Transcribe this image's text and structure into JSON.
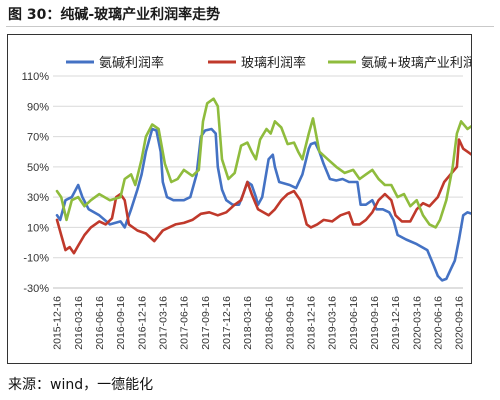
{
  "figure_title": "图 30：纯碱-玻璃产业利润率走势",
  "source_note": "来源：wind，一德能化",
  "chart_data": {
    "type": "line",
    "title": "",
    "xlabel": "",
    "ylabel": "",
    "ylim": [
      -30,
      110
    ],
    "y_ticks": [
      -30,
      -10,
      10,
      30,
      50,
      70,
      90,
      110
    ],
    "y_tick_labels": [
      "-30%",
      "-10%",
      "10%",
      "30%",
      "50%",
      "70%",
      "90%",
      "110%"
    ],
    "x_tick_labels": [
      "2015-12-16",
      "2016-03-16",
      "2016-06-16",
      "2016-09-16",
      "2016-12-16",
      "2017-03-16",
      "2017-06-16",
      "2017-09-16",
      "2017-12-16",
      "2018-03-16",
      "2018-06-16",
      "2018-09-16",
      "2018-12-16",
      "2019-03-16",
      "2019-06-16",
      "2019-09-16",
      "2019-12-16",
      "2020-03-16",
      "2020-06-16",
      "2020-09-16"
    ],
    "grid": true,
    "legend_position": "top",
    "series": [
      {
        "name": "氨碱利润率",
        "color": "#4472c4",
        "points": [
          [
            0,
            18
          ],
          [
            0.15,
            15
          ],
          [
            0.4,
            28
          ],
          [
            0.7,
            30
          ],
          [
            1.0,
            38
          ],
          [
            1.2,
            30
          ],
          [
            1.5,
            22
          ],
          [
            2.0,
            18
          ],
          [
            2.5,
            12
          ],
          [
            3.0,
            14
          ],
          [
            3.2,
            10
          ],
          [
            3.5,
            22
          ],
          [
            3.8,
            35
          ],
          [
            4.0,
            45
          ],
          [
            4.2,
            60
          ],
          [
            4.5,
            75
          ],
          [
            4.7,
            74
          ],
          [
            4.9,
            60
          ],
          [
            5.0,
            40
          ],
          [
            5.2,
            30
          ],
          [
            5.5,
            28
          ],
          [
            6.0,
            28
          ],
          [
            6.3,
            30
          ],
          [
            6.6,
            45
          ],
          [
            6.8,
            70
          ],
          [
            7.0,
            74
          ],
          [
            7.3,
            75
          ],
          [
            7.5,
            72
          ],
          [
            7.6,
            50
          ],
          [
            7.8,
            35
          ],
          [
            8.0,
            28
          ],
          [
            8.3,
            25
          ],
          [
            8.6,
            25
          ],
          [
            8.8,
            32
          ],
          [
            9.0,
            40
          ],
          [
            9.2,
            38
          ],
          [
            9.4,
            30
          ],
          [
            9.5,
            25
          ],
          [
            9.7,
            30
          ],
          [
            10.0,
            55
          ],
          [
            10.2,
            58
          ],
          [
            10.3,
            50
          ],
          [
            10.5,
            40
          ],
          [
            11.0,
            38
          ],
          [
            11.3,
            36
          ],
          [
            11.6,
            45
          ],
          [
            11.9,
            62
          ],
          [
            12.0,
            65
          ],
          [
            12.2,
            66
          ],
          [
            12.4,
            60
          ],
          [
            12.6,
            52
          ],
          [
            12.9,
            42
          ],
          [
            13.2,
            41
          ],
          [
            13.5,
            42
          ],
          [
            13.8,
            40
          ],
          [
            14.0,
            40
          ],
          [
            14.2,
            40
          ],
          [
            14.35,
            25
          ],
          [
            14.6,
            25
          ],
          [
            14.9,
            28
          ],
          [
            15.1,
            22
          ],
          [
            15.4,
            22
          ],
          [
            15.7,
            20
          ],
          [
            15.9,
            15
          ],
          [
            16.1,
            5
          ],
          [
            16.5,
            2
          ],
          [
            17.0,
            -1
          ],
          [
            17.5,
            -5
          ],
          [
            17.8,
            -15
          ],
          [
            18.0,
            -22
          ],
          [
            18.2,
            -25
          ],
          [
            18.4,
            -24
          ],
          [
            18.6,
            -18
          ],
          [
            18.8,
            -12
          ],
          [
            19.0,
            2
          ],
          [
            19.2,
            18
          ],
          [
            19.4,
            20
          ],
          [
            19.6,
            19
          ]
        ]
      },
      {
        "name": "玻璃利润率",
        "color": "#c0392b",
        "points": [
          [
            0,
            15
          ],
          [
            0.2,
            5
          ],
          [
            0.4,
            -5
          ],
          [
            0.6,
            -3
          ],
          [
            0.8,
            -7
          ],
          [
            1.0,
            -2
          ],
          [
            1.3,
            5
          ],
          [
            1.6,
            10
          ],
          [
            2.0,
            14
          ],
          [
            2.3,
            12
          ],
          [
            2.6,
            16
          ],
          [
            2.8,
            30
          ],
          [
            3.0,
            32
          ],
          [
            3.2,
            28
          ],
          [
            3.4,
            12
          ],
          [
            3.8,
            8
          ],
          [
            4.2,
            6
          ],
          [
            4.6,
            1
          ],
          [
            5.0,
            8
          ],
          [
            5.3,
            10
          ],
          [
            5.6,
            12
          ],
          [
            6.0,
            13
          ],
          [
            6.4,
            15
          ],
          [
            6.8,
            19
          ],
          [
            7.2,
            20
          ],
          [
            7.6,
            18
          ],
          [
            8.0,
            20
          ],
          [
            8.4,
            25
          ],
          [
            8.7,
            28
          ],
          [
            9.0,
            40
          ],
          [
            9.2,
            32
          ],
          [
            9.5,
            22
          ],
          [
            10.0,
            18
          ],
          [
            10.3,
            22
          ],
          [
            10.6,
            28
          ],
          [
            10.9,
            32
          ],
          [
            11.2,
            34
          ],
          [
            11.5,
            28
          ],
          [
            11.8,
            12
          ],
          [
            12.0,
            10
          ],
          [
            12.3,
            12
          ],
          [
            12.6,
            15
          ],
          [
            13.0,
            14
          ],
          [
            13.4,
            18
          ],
          [
            13.8,
            20
          ],
          [
            14.0,
            12
          ],
          [
            14.3,
            12
          ],
          [
            14.6,
            15
          ],
          [
            14.9,
            20
          ],
          [
            15.2,
            28
          ],
          [
            15.5,
            32
          ],
          [
            15.8,
            28
          ],
          [
            16.0,
            18
          ],
          [
            16.3,
            14
          ],
          [
            16.7,
            14
          ],
          [
            17.0,
            22
          ],
          [
            17.3,
            26
          ],
          [
            17.6,
            24
          ],
          [
            18.0,
            30
          ],
          [
            18.3,
            40
          ],
          [
            18.6,
            45
          ],
          [
            18.9,
            50
          ],
          [
            19.0,
            68
          ],
          [
            19.2,
            62
          ],
          [
            19.4,
            60
          ],
          [
            19.6,
            58
          ]
        ]
      },
      {
        "name": "氨碱+玻璃产业利润率",
        "color": "#8fbc3d",
        "points": [
          [
            0,
            34
          ],
          [
            0.2,
            30
          ],
          [
            0.45,
            15
          ],
          [
            0.7,
            28
          ],
          [
            1.0,
            30
          ],
          [
            1.3,
            24
          ],
          [
            1.6,
            28
          ],
          [
            2.0,
            32
          ],
          [
            2.5,
            28
          ],
          [
            3.0,
            30
          ],
          [
            3.2,
            42
          ],
          [
            3.5,
            45
          ],
          [
            3.7,
            38
          ],
          [
            4.0,
            55
          ],
          [
            4.2,
            70
          ],
          [
            4.5,
            78
          ],
          [
            4.8,
            75
          ],
          [
            5.1,
            52
          ],
          [
            5.4,
            40
          ],
          [
            5.7,
            42
          ],
          [
            6.0,
            48
          ],
          [
            6.4,
            44
          ],
          [
            6.7,
            48
          ],
          [
            6.9,
            80
          ],
          [
            7.1,
            92
          ],
          [
            7.4,
            95
          ],
          [
            7.6,
            90
          ],
          [
            7.8,
            55
          ],
          [
            8.1,
            42
          ],
          [
            8.4,
            46
          ],
          [
            8.7,
            64
          ],
          [
            9.0,
            66
          ],
          [
            9.2,
            60
          ],
          [
            9.4,
            55
          ],
          [
            9.6,
            68
          ],
          [
            9.9,
            75
          ],
          [
            10.1,
            72
          ],
          [
            10.3,
            80
          ],
          [
            10.6,
            76
          ],
          [
            10.9,
            65
          ],
          [
            11.2,
            66
          ],
          [
            11.4,
            60
          ],
          [
            11.6,
            55
          ],
          [
            11.9,
            72
          ],
          [
            12.1,
            82
          ],
          [
            12.4,
            60
          ],
          [
            12.8,
            55
          ],
          [
            13.2,
            50
          ],
          [
            13.6,
            46
          ],
          [
            14.0,
            48
          ],
          [
            14.3,
            42
          ],
          [
            14.6,
            45
          ],
          [
            14.9,
            48
          ],
          [
            15.2,
            42
          ],
          [
            15.5,
            38
          ],
          [
            15.8,
            38
          ],
          [
            16.1,
            30
          ],
          [
            16.4,
            32
          ],
          [
            16.7,
            24
          ],
          [
            17.0,
            28
          ],
          [
            17.3,
            18
          ],
          [
            17.6,
            12
          ],
          [
            17.9,
            10
          ],
          [
            18.1,
            15
          ],
          [
            18.4,
            28
          ],
          [
            18.7,
            50
          ],
          [
            18.9,
            72
          ],
          [
            19.1,
            80
          ],
          [
            19.4,
            75
          ],
          [
            19.6,
            77
          ]
        ]
      }
    ]
  }
}
